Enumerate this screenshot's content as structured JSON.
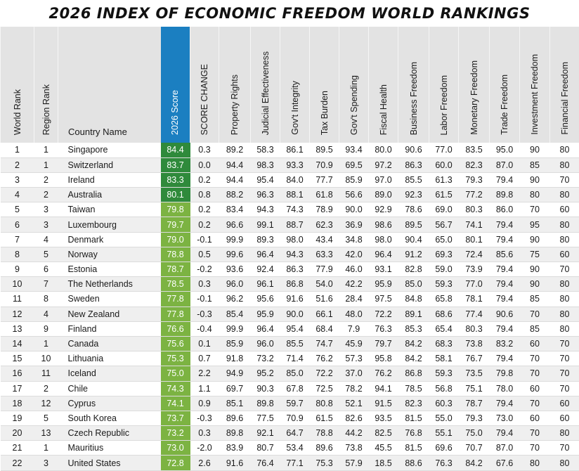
{
  "title": "2026 INDEX OF ECONOMIC FREEDOM WORLD RANKINGS",
  "colors": {
    "score_header": "#1b7fc1",
    "score_top": "#2f8a3b",
    "score_mostly_free": "#7cb342",
    "header_bg": "#e3e3e3"
  },
  "columns": {
    "world_rank": "World Rank",
    "region_rank": "Region Rank",
    "country": "Country Name",
    "score": "2026 Score",
    "change": "SCORE CHANGE",
    "property": "Property Rights",
    "judicial": "Judicial Effectiveness",
    "integrity": "Gov't Integrity",
    "tax": "Tax Burden",
    "spending": "Gov't Spending",
    "fiscal": "Fiscal Health",
    "business": "Business Freedom",
    "labor": "Labor Freedom",
    "monetary": "Monetary Freedom",
    "trade": "Trade Freedom",
    "investment": "Investment Freedom",
    "financial": "Financial Freedom"
  },
  "rows": [
    {
      "world_rank": "1",
      "region_rank": "1",
      "country": "Singapore",
      "score": "84.4",
      "tier": "dark",
      "change": "0.3",
      "property": "89.2",
      "judicial": "58.3",
      "integrity": "86.1",
      "tax": "89.5",
      "spending": "93.4",
      "fiscal": "80.0",
      "business": "90.6",
      "labor": "77.0",
      "monetary": "83.5",
      "trade": "95.0",
      "investment": "90",
      "financial": "80"
    },
    {
      "world_rank": "2",
      "region_rank": "1",
      "country": "Switzerland",
      "score": "83.7",
      "tier": "dark",
      "change": "0.0",
      "property": "94.4",
      "judicial": "98.3",
      "integrity": "93.3",
      "tax": "70.9",
      "spending": "69.5",
      "fiscal": "97.2",
      "business": "86.3",
      "labor": "60.0",
      "monetary": "82.3",
      "trade": "87.0",
      "investment": "85",
      "financial": "80"
    },
    {
      "world_rank": "3",
      "region_rank": "2",
      "country": "Ireland",
      "score": "83.3",
      "tier": "dark",
      "change": "0.2",
      "property": "94.4",
      "judicial": "95.4",
      "integrity": "84.0",
      "tax": "77.7",
      "spending": "85.9",
      "fiscal": "97.0",
      "business": "85.5",
      "labor": "61.3",
      "monetary": "79.3",
      "trade": "79.4",
      "investment": "90",
      "financial": "70"
    },
    {
      "world_rank": "4",
      "region_rank": "2",
      "country": "Australia",
      "score": "80.1",
      "tier": "dark",
      "change": "0.8",
      "property": "88.2",
      "judicial": "96.3",
      "integrity": "88.1",
      "tax": "61.8",
      "spending": "56.6",
      "fiscal": "89.0",
      "business": "92.3",
      "labor": "61.5",
      "monetary": "77.2",
      "trade": "89.8",
      "investment": "80",
      "financial": "80"
    },
    {
      "world_rank": "5",
      "region_rank": "3",
      "country": "Taiwan",
      "score": "79.8",
      "tier": "light",
      "change": "0.2",
      "property": "83.4",
      "judicial": "94.3",
      "integrity": "74.3",
      "tax": "78.9",
      "spending": "90.0",
      "fiscal": "92.9",
      "business": "78.6",
      "labor": "69.0",
      "monetary": "80.3",
      "trade": "86.0",
      "investment": "70",
      "financial": "60"
    },
    {
      "world_rank": "6",
      "region_rank": "3",
      "country": "Luxembourg",
      "score": "79.7",
      "tier": "light",
      "change": "0.2",
      "property": "96.6",
      "judicial": "99.1",
      "integrity": "88.7",
      "tax": "62.3",
      "spending": "36.9",
      "fiscal": "98.6",
      "business": "89.5",
      "labor": "56.7",
      "monetary": "74.1",
      "trade": "79.4",
      "investment": "95",
      "financial": "80"
    },
    {
      "world_rank": "7",
      "region_rank": "4",
      "country": "Denmark",
      "score": "79.0",
      "tier": "light",
      "change": "-0.1",
      "property": "99.9",
      "judicial": "89.3",
      "integrity": "98.0",
      "tax": "43.4",
      "spending": "34.8",
      "fiscal": "98.0",
      "business": "90.4",
      "labor": "65.0",
      "monetary": "80.1",
      "trade": "79.4",
      "investment": "90",
      "financial": "80"
    },
    {
      "world_rank": "8",
      "region_rank": "5",
      "country": "Norway",
      "score": "78.8",
      "tier": "light",
      "change": "0.5",
      "property": "99.6",
      "judicial": "96.4",
      "integrity": "94.3",
      "tax": "63.3",
      "spending": "42.0",
      "fiscal": "96.4",
      "business": "91.2",
      "labor": "69.3",
      "monetary": "72.4",
      "trade": "85.6",
      "investment": "75",
      "financial": "60"
    },
    {
      "world_rank": "9",
      "region_rank": "6",
      "country": "Estonia",
      "score": "78.7",
      "tier": "light",
      "change": "-0.2",
      "property": "93.6",
      "judicial": "92.4",
      "integrity": "86.3",
      "tax": "77.9",
      "spending": "46.0",
      "fiscal": "93.1",
      "business": "82.8",
      "labor": "59.0",
      "monetary": "73.9",
      "trade": "79.4",
      "investment": "90",
      "financial": "70"
    },
    {
      "world_rank": "10",
      "region_rank": "7",
      "country": "The Netherlands",
      "score": "78.5",
      "tier": "light",
      "change": "0.3",
      "property": "96.0",
      "judicial": "96.1",
      "integrity": "86.8",
      "tax": "54.0",
      "spending": "42.2",
      "fiscal": "95.9",
      "business": "85.0",
      "labor": "59.3",
      "monetary": "77.0",
      "trade": "79.4",
      "investment": "90",
      "financial": "80"
    },
    {
      "world_rank": "11",
      "region_rank": "8",
      "country": "Sweden",
      "score": "77.8",
      "tier": "light",
      "change": "-0.1",
      "property": "96.2",
      "judicial": "95.6",
      "integrity": "91.6",
      "tax": "51.6",
      "spending": "28.4",
      "fiscal": "97.5",
      "business": "84.8",
      "labor": "65.8",
      "monetary": "78.1",
      "trade": "79.4",
      "investment": "85",
      "financial": "80"
    },
    {
      "world_rank": "12",
      "region_rank": "4",
      "country": "New Zealand",
      "score": "77.8",
      "tier": "light",
      "change": "-0.3",
      "property": "85.4",
      "judicial": "95.9",
      "integrity": "90.0",
      "tax": "66.1",
      "spending": "48.0",
      "fiscal": "72.2",
      "business": "89.1",
      "labor": "68.6",
      "monetary": "77.4",
      "trade": "90.6",
      "investment": "70",
      "financial": "80"
    },
    {
      "world_rank": "13",
      "region_rank": "9",
      "country": "Finland",
      "score": "76.6",
      "tier": "light",
      "change": "-0.4",
      "property": "99.9",
      "judicial": "96.4",
      "integrity": "95.4",
      "tax": "68.4",
      "spending": "7.9",
      "fiscal": "76.3",
      "business": "85.3",
      "labor": "65.4",
      "monetary": "80.3",
      "trade": "79.4",
      "investment": "85",
      "financial": "80"
    },
    {
      "world_rank": "14",
      "region_rank": "1",
      "country": "Canada",
      "score": "75.6",
      "tier": "light",
      "change": "0.1",
      "property": "85.9",
      "judicial": "96.0",
      "integrity": "85.5",
      "tax": "74.7",
      "spending": "45.9",
      "fiscal": "79.7",
      "business": "84.2",
      "labor": "68.3",
      "monetary": "73.8",
      "trade": "83.2",
      "investment": "60",
      "financial": "70"
    },
    {
      "world_rank": "15",
      "region_rank": "10",
      "country": "Lithuania",
      "score": "75.3",
      "tier": "light",
      "change": "0.7",
      "property": "91.8",
      "judicial": "73.2",
      "integrity": "71.4",
      "tax": "76.2",
      "spending": "57.3",
      "fiscal": "95.8",
      "business": "84.2",
      "labor": "58.1",
      "monetary": "76.7",
      "trade": "79.4",
      "investment": "70",
      "financial": "70"
    },
    {
      "world_rank": "16",
      "region_rank": "11",
      "country": "Iceland",
      "score": "75.0",
      "tier": "light",
      "change": "2.2",
      "property": "94.9",
      "judicial": "95.2",
      "integrity": "85.0",
      "tax": "72.2",
      "spending": "37.0",
      "fiscal": "76.2",
      "business": "86.8",
      "labor": "59.3",
      "monetary": "73.5",
      "trade": "79.8",
      "investment": "70",
      "financial": "70"
    },
    {
      "world_rank": "17",
      "region_rank": "2",
      "country": "Chile",
      "score": "74.3",
      "tier": "light",
      "change": "1.1",
      "property": "69.7",
      "judicial": "90.3",
      "integrity": "67.8",
      "tax": "72.5",
      "spending": "78.2",
      "fiscal": "94.1",
      "business": "78.5",
      "labor": "56.8",
      "monetary": "75.1",
      "trade": "78.0",
      "investment": "60",
      "financial": "70"
    },
    {
      "world_rank": "18",
      "region_rank": "12",
      "country": "Cyprus",
      "score": "74.1",
      "tier": "light",
      "change": "0.9",
      "property": "85.1",
      "judicial": "89.8",
      "integrity": "59.7",
      "tax": "80.8",
      "spending": "52.1",
      "fiscal": "91.5",
      "business": "82.3",
      "labor": "60.3",
      "monetary": "78.7",
      "trade": "79.4",
      "investment": "70",
      "financial": "60"
    },
    {
      "world_rank": "19",
      "region_rank": "5",
      "country": "South Korea",
      "score": "73.7",
      "tier": "light",
      "change": "-0.3",
      "property": "89.6",
      "judicial": "77.5",
      "integrity": "70.9",
      "tax": "61.5",
      "spending": "82.6",
      "fiscal": "93.5",
      "business": "81.5",
      "labor": "55.0",
      "monetary": "79.3",
      "trade": "73.0",
      "investment": "60",
      "financial": "60"
    },
    {
      "world_rank": "20",
      "region_rank": "13",
      "country": "Czech Republic",
      "score": "73.2",
      "tier": "light",
      "change": "0.3",
      "property": "89.8",
      "judicial": "92.1",
      "integrity": "64.7",
      "tax": "78.8",
      "spending": "44.2",
      "fiscal": "82.5",
      "business": "76.8",
      "labor": "55.1",
      "monetary": "75.0",
      "trade": "79.4",
      "investment": "70",
      "financial": "80"
    },
    {
      "world_rank": "21",
      "region_rank": "1",
      "country": "Mauritius",
      "score": "73.0",
      "tier": "light",
      "change": "-2.0",
      "property": "83.9",
      "judicial": "80.7",
      "integrity": "53.4",
      "tax": "89.6",
      "spending": "73.8",
      "fiscal": "45.5",
      "business": "81.5",
      "labor": "69.6",
      "monetary": "70.7",
      "trade": "87.0",
      "investment": "70",
      "financial": "70"
    },
    {
      "world_rank": "22",
      "region_rank": "3",
      "country": "United States",
      "score": "72.8",
      "tier": "light",
      "change": "2.6",
      "property": "91.6",
      "judicial": "76.4",
      "integrity": "77.1",
      "tax": "75.3",
      "spending": "57.9",
      "fiscal": "18.5",
      "business": "88.6",
      "labor": "76.3",
      "monetary": "84.2",
      "trade": "67.6",
      "investment": "80",
      "financial": "80"
    }
  ]
}
